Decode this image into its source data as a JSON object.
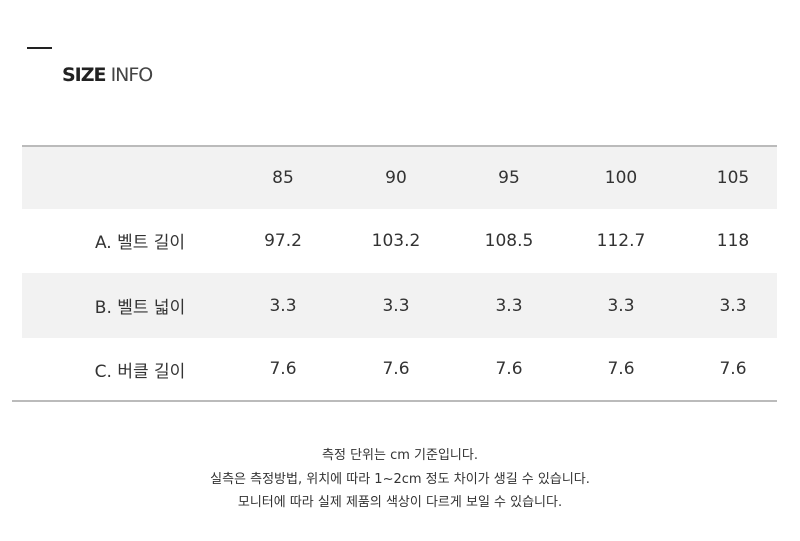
{
  "header": {
    "title_bold": "SIZE",
    "title_light": "INFO"
  },
  "table": {
    "columns": [
      "85",
      "90",
      "95",
      "100",
      "105"
    ],
    "rows": [
      [
        "A. 벨트 길이",
        "97.2",
        "103.2",
        "108.5",
        "112.7",
        "118"
      ],
      [
        "B. 벨트 넓이",
        "3.3",
        "3.3",
        "3.3",
        "3.3",
        "3.3"
      ],
      [
        "C. 버클 길이",
        "7.6",
        "7.6",
        "7.6",
        "7.6",
        "7.6"
      ]
    ]
  },
  "notes": [
    "측정 단위는 cm 기준입니다.",
    "실측은 측정방법, 위치에 따라 1~2cm 정도 차이가 생길 수 있습니다.",
    "모니터에 따라 실제 제품의 색상이 다르게 보일 수 있습니다."
  ]
}
